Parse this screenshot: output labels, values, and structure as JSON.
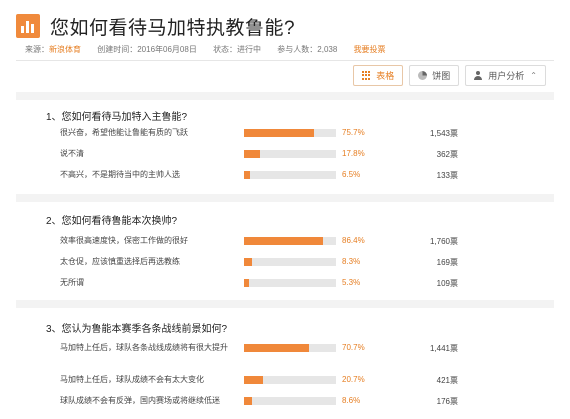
{
  "title": "您如何看待马加特执教鲁能?",
  "meta": {
    "source_label": "来源：",
    "source_value": "新浪体育",
    "created": "创建时间：2016年06月08日",
    "status": "状态：进行中",
    "participants": "参与人数：2,038",
    "vote_link": "我要投票"
  },
  "toolbar": {
    "table_label": "表格",
    "pie_label": "饼图",
    "user_label": "用户分析"
  },
  "questions": [
    {
      "title": "1、您如何看待马加特入主鲁能?",
      "options": [
        {
          "label": "很兴奋，希望他能让鲁能有质的飞跃",
          "percent": "75.7%",
          "fraction": 0.757,
          "votes": "1,543票"
        },
        {
          "label": "说不清",
          "percent": "17.8%",
          "fraction": 0.178,
          "votes": "362票"
        },
        {
          "label": "不高兴，不是期待当中的主帅人选",
          "percent": "6.5%",
          "fraction": 0.065,
          "votes": "133票"
        }
      ]
    },
    {
      "title": "2、您如何看待鲁能本次换帅?",
      "options": [
        {
          "label": "效率很高速度快，保密工作做的很好",
          "percent": "86.4%",
          "fraction": 0.864,
          "votes": "1,760票"
        },
        {
          "label": "太仓促，应该慎重选择后再选教练",
          "percent": "8.3%",
          "fraction": 0.083,
          "votes": "169票"
        },
        {
          "label": "无所谓",
          "percent": "5.3%",
          "fraction": 0.053,
          "votes": "109票"
        }
      ]
    },
    {
      "title": "3、您认为鲁能本赛季各条战线前景如何?",
      "options": [
        {
          "label": "马加特上任后，球队各条战线成绩将有很大提升",
          "percent": "70.7%",
          "fraction": 0.707,
          "votes": "1,441票"
        },
        {
          "label": "马加特上任后，球队成绩不会有太大变化",
          "percent": "20.7%",
          "fraction": 0.207,
          "votes": "421票"
        },
        {
          "label": "球队成绩不会有反弹，国内赛场或将继续低迷",
          "percent": "8.6%",
          "fraction": 0.086,
          "votes": "176票"
        }
      ]
    }
  ]
}
